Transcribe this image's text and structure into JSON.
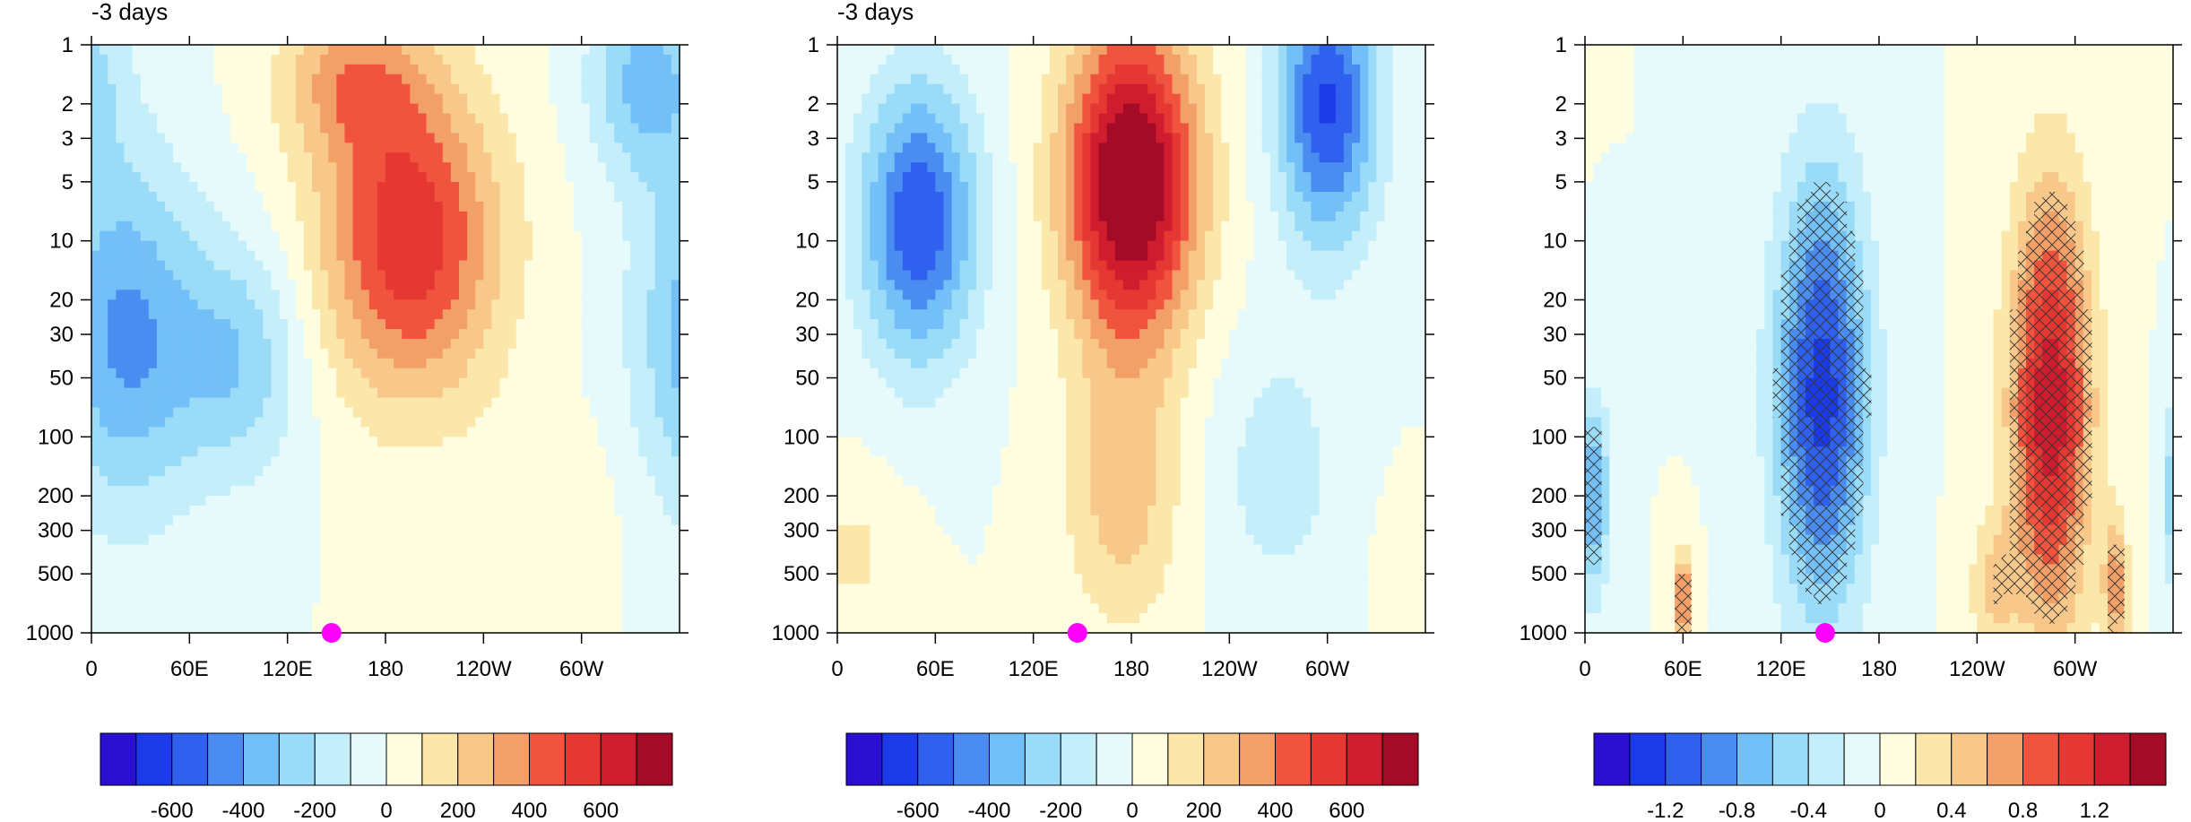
{
  "chart_data": [
    {
      "type": "heatmap",
      "title": "-3 days",
      "xlabel": "",
      "ylabel": "",
      "x_ticks": [
        "0",
        "60E",
        "120E",
        "180",
        "120W",
        "60W"
      ],
      "x_tick_lon": [
        0,
        60,
        120,
        180,
        240,
        300
      ],
      "xlim": [
        0,
        360
      ],
      "y_ticks": [
        "1",
        "2",
        "3",
        "5",
        "10",
        "20",
        "30",
        "50",
        "100",
        "200",
        "300",
        "500",
        "1000"
      ],
      "y_tick_values": [
        1,
        2,
        3,
        5,
        10,
        20,
        30,
        50,
        100,
        200,
        300,
        500,
        1000
      ],
      "ylim": [
        1000,
        1
      ],
      "y_scale": "log",
      "marker": {
        "lon": 147,
        "level": 1000,
        "color": "#ff00ff"
      },
      "colorbar": {
        "tick_labels": [
          "-600",
          "-400",
          "-200",
          "0",
          "200",
          "400",
          "600"
        ],
        "tick_values": [
          -600,
          -400,
          -200,
          0,
          200,
          400,
          600
        ],
        "levels": [
          -700,
          -600,
          -500,
          -400,
          -300,
          -200,
          -100,
          0,
          100,
          200,
          300,
          400,
          500,
          600,
          700
        ]
      },
      "features": [
        {
          "lon": 20,
          "level": 30,
          "amplitude": -420,
          "lon_width": 45,
          "level_width": 0.9
        },
        {
          "lon": 90,
          "level": 40,
          "amplitude": -280,
          "lon_width": 40,
          "level_width": 0.6
        },
        {
          "lon": 195,
          "level": 10,
          "amplitude": 580,
          "lon_width": 55,
          "level_width": 0.8
        },
        {
          "lon": 160,
          "level": 1.5,
          "amplitude": 300,
          "lon_width": 45,
          "level_width": 0.4
        },
        {
          "lon": 340,
          "level": 1.5,
          "amplitude": -340,
          "lon_width": 35,
          "level_width": 0.5
        },
        {
          "lon": 280,
          "level": 250,
          "amplitude": 90,
          "lon_width": 40,
          "level_width": 0.5
        }
      ]
    },
    {
      "type": "heatmap",
      "title": "-3 days",
      "xlabel": "",
      "ylabel": "",
      "x_ticks": [
        "0",
        "60E",
        "120E",
        "180",
        "120W",
        "60W"
      ],
      "x_tick_lon": [
        0,
        60,
        120,
        180,
        240,
        300
      ],
      "xlim": [
        0,
        360
      ],
      "y_ticks": [
        "1",
        "2",
        "3",
        "5",
        "10",
        "20",
        "30",
        "50",
        "100",
        "200",
        "300",
        "500",
        "1000"
      ],
      "y_tick_values": [
        1,
        2,
        3,
        5,
        10,
        20,
        30,
        50,
        100,
        200,
        300,
        500,
        1000
      ],
      "ylim": [
        1000,
        1
      ],
      "y_scale": "log",
      "marker": {
        "lon": 147,
        "level": 1000,
        "color": "#ff00ff"
      },
      "colorbar": {
        "tick_labels": [
          "-600",
          "-400",
          "-200",
          "0",
          "200",
          "400",
          "600"
        ],
        "tick_values": [
          -600,
          -400,
          -200,
          0,
          200,
          400,
          600
        ],
        "levels": [
          -700,
          -600,
          -500,
          -400,
          -300,
          -200,
          -100,
          0,
          100,
          200,
          300,
          400,
          500,
          600,
          700
        ]
      },
      "features": [
        {
          "lon": 50,
          "level": 8,
          "amplitude": -600,
          "lon_width": 35,
          "level_width": 0.7
        },
        {
          "lon": 180,
          "level": 5,
          "amplitude": 900,
          "lon_width": 40,
          "level_width": 0.8
        },
        {
          "lon": 175,
          "level": 200,
          "amplitude": 250,
          "lon_width": 35,
          "level_width": 0.7
        },
        {
          "lon": 300,
          "level": 2,
          "amplitude": -620,
          "lon_width": 30,
          "level_width": 0.7
        },
        {
          "lon": 270,
          "level": 150,
          "amplitude": -150,
          "lon_width": 40,
          "level_width": 0.7
        },
        {
          "lon": 10,
          "level": 400,
          "amplitude": 120,
          "lon_width": 30,
          "level_width": 0.4
        }
      ]
    },
    {
      "type": "heatmap",
      "title": "",
      "xlabel": "",
      "ylabel": "",
      "x_ticks": [
        "0",
        "60E",
        "120E",
        "180",
        "120W",
        "60W"
      ],
      "x_tick_lon": [
        0,
        60,
        120,
        180,
        240,
        300
      ],
      "xlim": [
        0,
        360
      ],
      "y_ticks": [
        "1",
        "2",
        "3",
        "5",
        "10",
        "20",
        "30",
        "50",
        "100",
        "200",
        "300",
        "500",
        "1000"
      ],
      "y_tick_values": [
        1,
        2,
        3,
        5,
        10,
        20,
        30,
        50,
        100,
        200,
        300,
        500,
        1000
      ],
      "ylim": [
        1000,
        1
      ],
      "y_scale": "log",
      "marker": {
        "lon": 147,
        "level": 1000,
        "color": "#ff00ff"
      },
      "hatching": "significant regions (cross-hatched)",
      "colorbar": {
        "tick_labels": [
          "-1.2",
          "-0.8",
          "-0.4",
          "0",
          "0.4",
          "0.8",
          "1.2"
        ],
        "tick_values": [
          -1.2,
          -0.8,
          -0.4,
          0,
          0.4,
          0.8,
          1.2
        ],
        "levels": [
          -1.4,
          -1.2,
          -1.0,
          -0.8,
          -0.6,
          -0.4,
          -0.2,
          0,
          0.2,
          0.4,
          0.6,
          0.8,
          1.0,
          1.2,
          1.4
        ]
      },
      "features": [
        {
          "lon": 145,
          "level": 60,
          "amplitude": -1.3,
          "lon_width": 28,
          "level_width": 1.1
        },
        {
          "lon": 285,
          "level": 70,
          "amplitude": 1.35,
          "lon_width": 25,
          "level_width": 1.1
        },
        {
          "lon": 5,
          "level": 200,
          "amplitude": -0.8,
          "lon_width": 10,
          "level_width": 0.5
        },
        {
          "lon": 60,
          "level": 700,
          "amplitude": 0.9,
          "lon_width": 6,
          "level_width": 0.25
        },
        {
          "lon": 325,
          "level": 600,
          "amplitude": 0.7,
          "lon_width": 8,
          "level_width": 0.35
        },
        {
          "lon": 250,
          "level": 600,
          "amplitude": 0.4,
          "lon_width": 15,
          "level_width": 0.35
        }
      ]
    }
  ]
}
